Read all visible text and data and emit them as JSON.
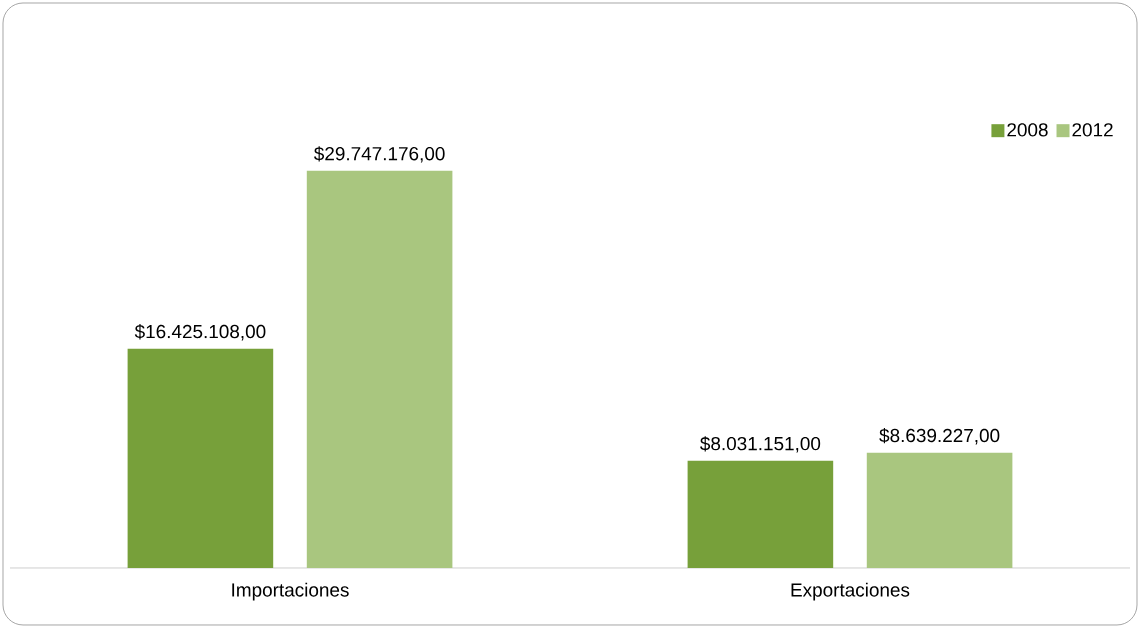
{
  "chart_data": {
    "type": "bar",
    "categories": [
      "Importaciones",
      "Exportaciones"
    ],
    "series": [
      {
        "name": "2008",
        "color": "#77a03a",
        "values": [
          16425108,
          8031151
        ],
        "value_labels": [
          "$16.425.108,00",
          "$8.031.151,00"
        ]
      },
      {
        "name": "2012",
        "color": "#a9c67f",
        "values": [
          29747176,
          8639227
        ],
        "value_labels": [
          "$29.747.176,00",
          "$8.639.227,00"
        ]
      }
    ],
    "legend": "right"
  }
}
